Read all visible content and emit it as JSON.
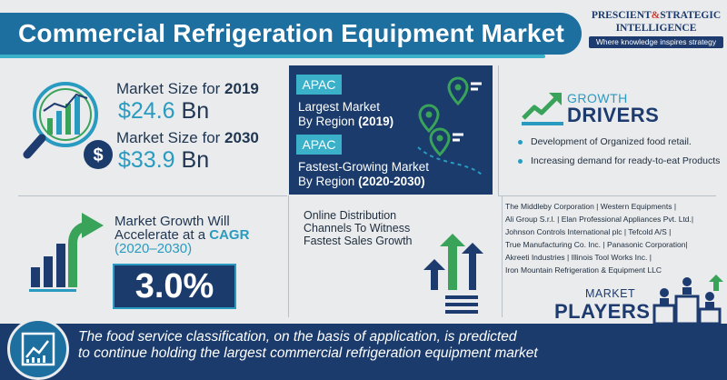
{
  "header": {
    "title": "Commercial Refrigeration Equipment Market",
    "logo": {
      "line1_a": "PRESCIENT",
      "amp": "&",
      "line1_b": "STRATEGIC",
      "line2": "INTELLIGENCE",
      "tagline": "Where knowledge inspires strategy"
    }
  },
  "market_size": {
    "icon": "magnifier-chart-dollar-icon",
    "items": [
      {
        "label": "Market Size for",
        "year": "2019",
        "value": "$24.6",
        "unit": "Bn"
      },
      {
        "label": "Market Size for",
        "year": "2030",
        "value": "$33.9",
        "unit": "Bn"
      }
    ]
  },
  "region": {
    "icon": "map-pins-icon",
    "items": [
      {
        "tag": "APAC",
        "line1": "Largest Market",
        "line2": "By Region",
        "period": "(2019)"
      },
      {
        "tag": "APAC",
        "line1": "Fastest-Growing Market",
        "line2": "By Region",
        "period": "(2020-2030)"
      }
    ]
  },
  "growth_drivers": {
    "icon": "trend-arrow-icon",
    "label_top": "GROWTH",
    "label_bottom": "DRIVERS",
    "items": [
      "Development of Organized food retail.",
      "Increasing demand for ready-to-eat Products"
    ]
  },
  "cagr": {
    "icon": "bar-chart-arrow-icon",
    "line1": "Market Growth Will",
    "line2_a": "Accelerate at a",
    "line2_b": "CAGR",
    "line3": "(2020–2030)",
    "value": "3.0%"
  },
  "online": {
    "icon": "up-arrows-icon",
    "line1": "Online Distribution",
    "line2": "Channels To Witness",
    "line3": "Fastest Sales Growth"
  },
  "players": {
    "icon": "podium-people-icon",
    "lines": [
      "The Middleby Corporation | Western Equipments |",
      "Ali Group S.r.l. | Elan Professional Appliances Pvt. Ltd.|",
      "Johnson Controls International plc | Tefcold A/S |",
      "True Manufacturing Co. Inc. | Panasonic Corporation|",
      "Akreeti Industries | Illinois Tool Works Inc. |",
      "Iron Mountain Refrigeration & Equipment LLC"
    ],
    "label_top": "MARKET",
    "label_bottom": "PLAYERS"
  },
  "footer": {
    "icon": "line-chart-icon",
    "line1": "The food service classification, on the basis of application, is predicted",
    "line2": "to continue holding the largest commercial refrigeration equipment market"
  },
  "colors": {
    "primary_blue": "#1d6fa0",
    "navy": "#1a3b6b",
    "accent_teal": "#2a9bc0",
    "accent_green": "#3aa35a",
    "logo_red": "#d6392f",
    "background": "#e9ebed"
  }
}
